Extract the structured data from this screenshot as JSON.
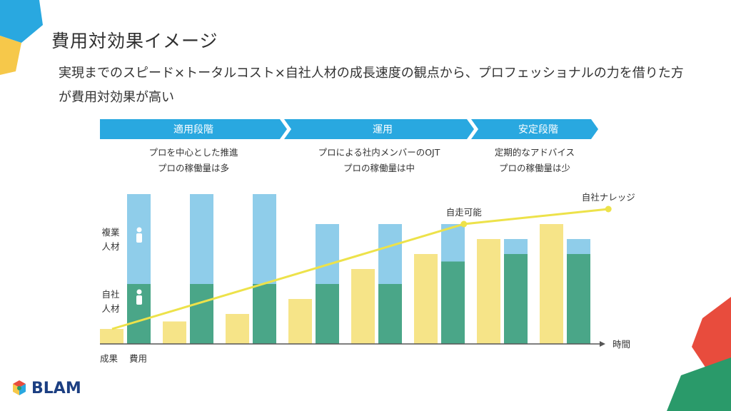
{
  "slide": {
    "title": "費用対効果イメージ",
    "subtitle": "実現までのスピード×トータルコスト×自社人材の成長速度の観点から、プロフェッショナルの力を借りた方が費用対効果が高い"
  },
  "logo": {
    "text": "BLAM"
  },
  "phases": [
    {
      "label": "適用段階",
      "desc1": "プロを中心とした推進",
      "desc2": "プロの稼働量は多"
    },
    {
      "label": "運用",
      "desc1": "プロによる社内メンバーのOJT",
      "desc2": "プロの稼働量は中"
    },
    {
      "label": "安定段階",
      "desc1": "定期的なアドバイス",
      "desc2": "プロの稼働量は少"
    }
  ],
  "colors": {
    "arrow": "#29a8e0",
    "professional": "#8fcdea",
    "internal": "#4aa688",
    "outcome": "#f6e488",
    "trend_line": "#ede24a",
    "axis": "#555555"
  },
  "chart_data": {
    "type": "bar",
    "description_units": "relative amount",
    "ylim": [
      0,
      10
    ],
    "legend": {
      "professional": "複業人材",
      "internal": "自社人材"
    },
    "xaxis_label": "時間",
    "bottom_labels": [
      "成果",
      "費用"
    ],
    "groups": [
      {
        "outcome": 1,
        "internal": 4,
        "professional": 6
      },
      {
        "outcome": 1.5,
        "internal": 4,
        "professional": 6
      },
      {
        "outcome": 2,
        "internal": 4,
        "professional": 6
      },
      {
        "outcome": 3,
        "internal": 4,
        "professional": 4
      },
      {
        "outcome": 5,
        "internal": 4,
        "professional": 4
      },
      {
        "outcome": 6,
        "internal": 5.5,
        "professional": 2.5
      },
      {
        "outcome": 7,
        "internal": 6,
        "professional": 1
      },
      {
        "outcome": 8,
        "internal": 6,
        "professional": 1
      }
    ],
    "trend_line": {
      "points": [
        {
          "t": 0,
          "v": 1.0
        },
        {
          "t": 5.6,
          "v": 8.0
        },
        {
          "t": 7.9,
          "v": 9.0
        }
      ],
      "annotations": [
        {
          "t": 5.6,
          "v": 8.0,
          "label": "自走可能"
        },
        {
          "t": 7.9,
          "v": 9.0,
          "label": "自社ナレッジ"
        }
      ]
    }
  }
}
